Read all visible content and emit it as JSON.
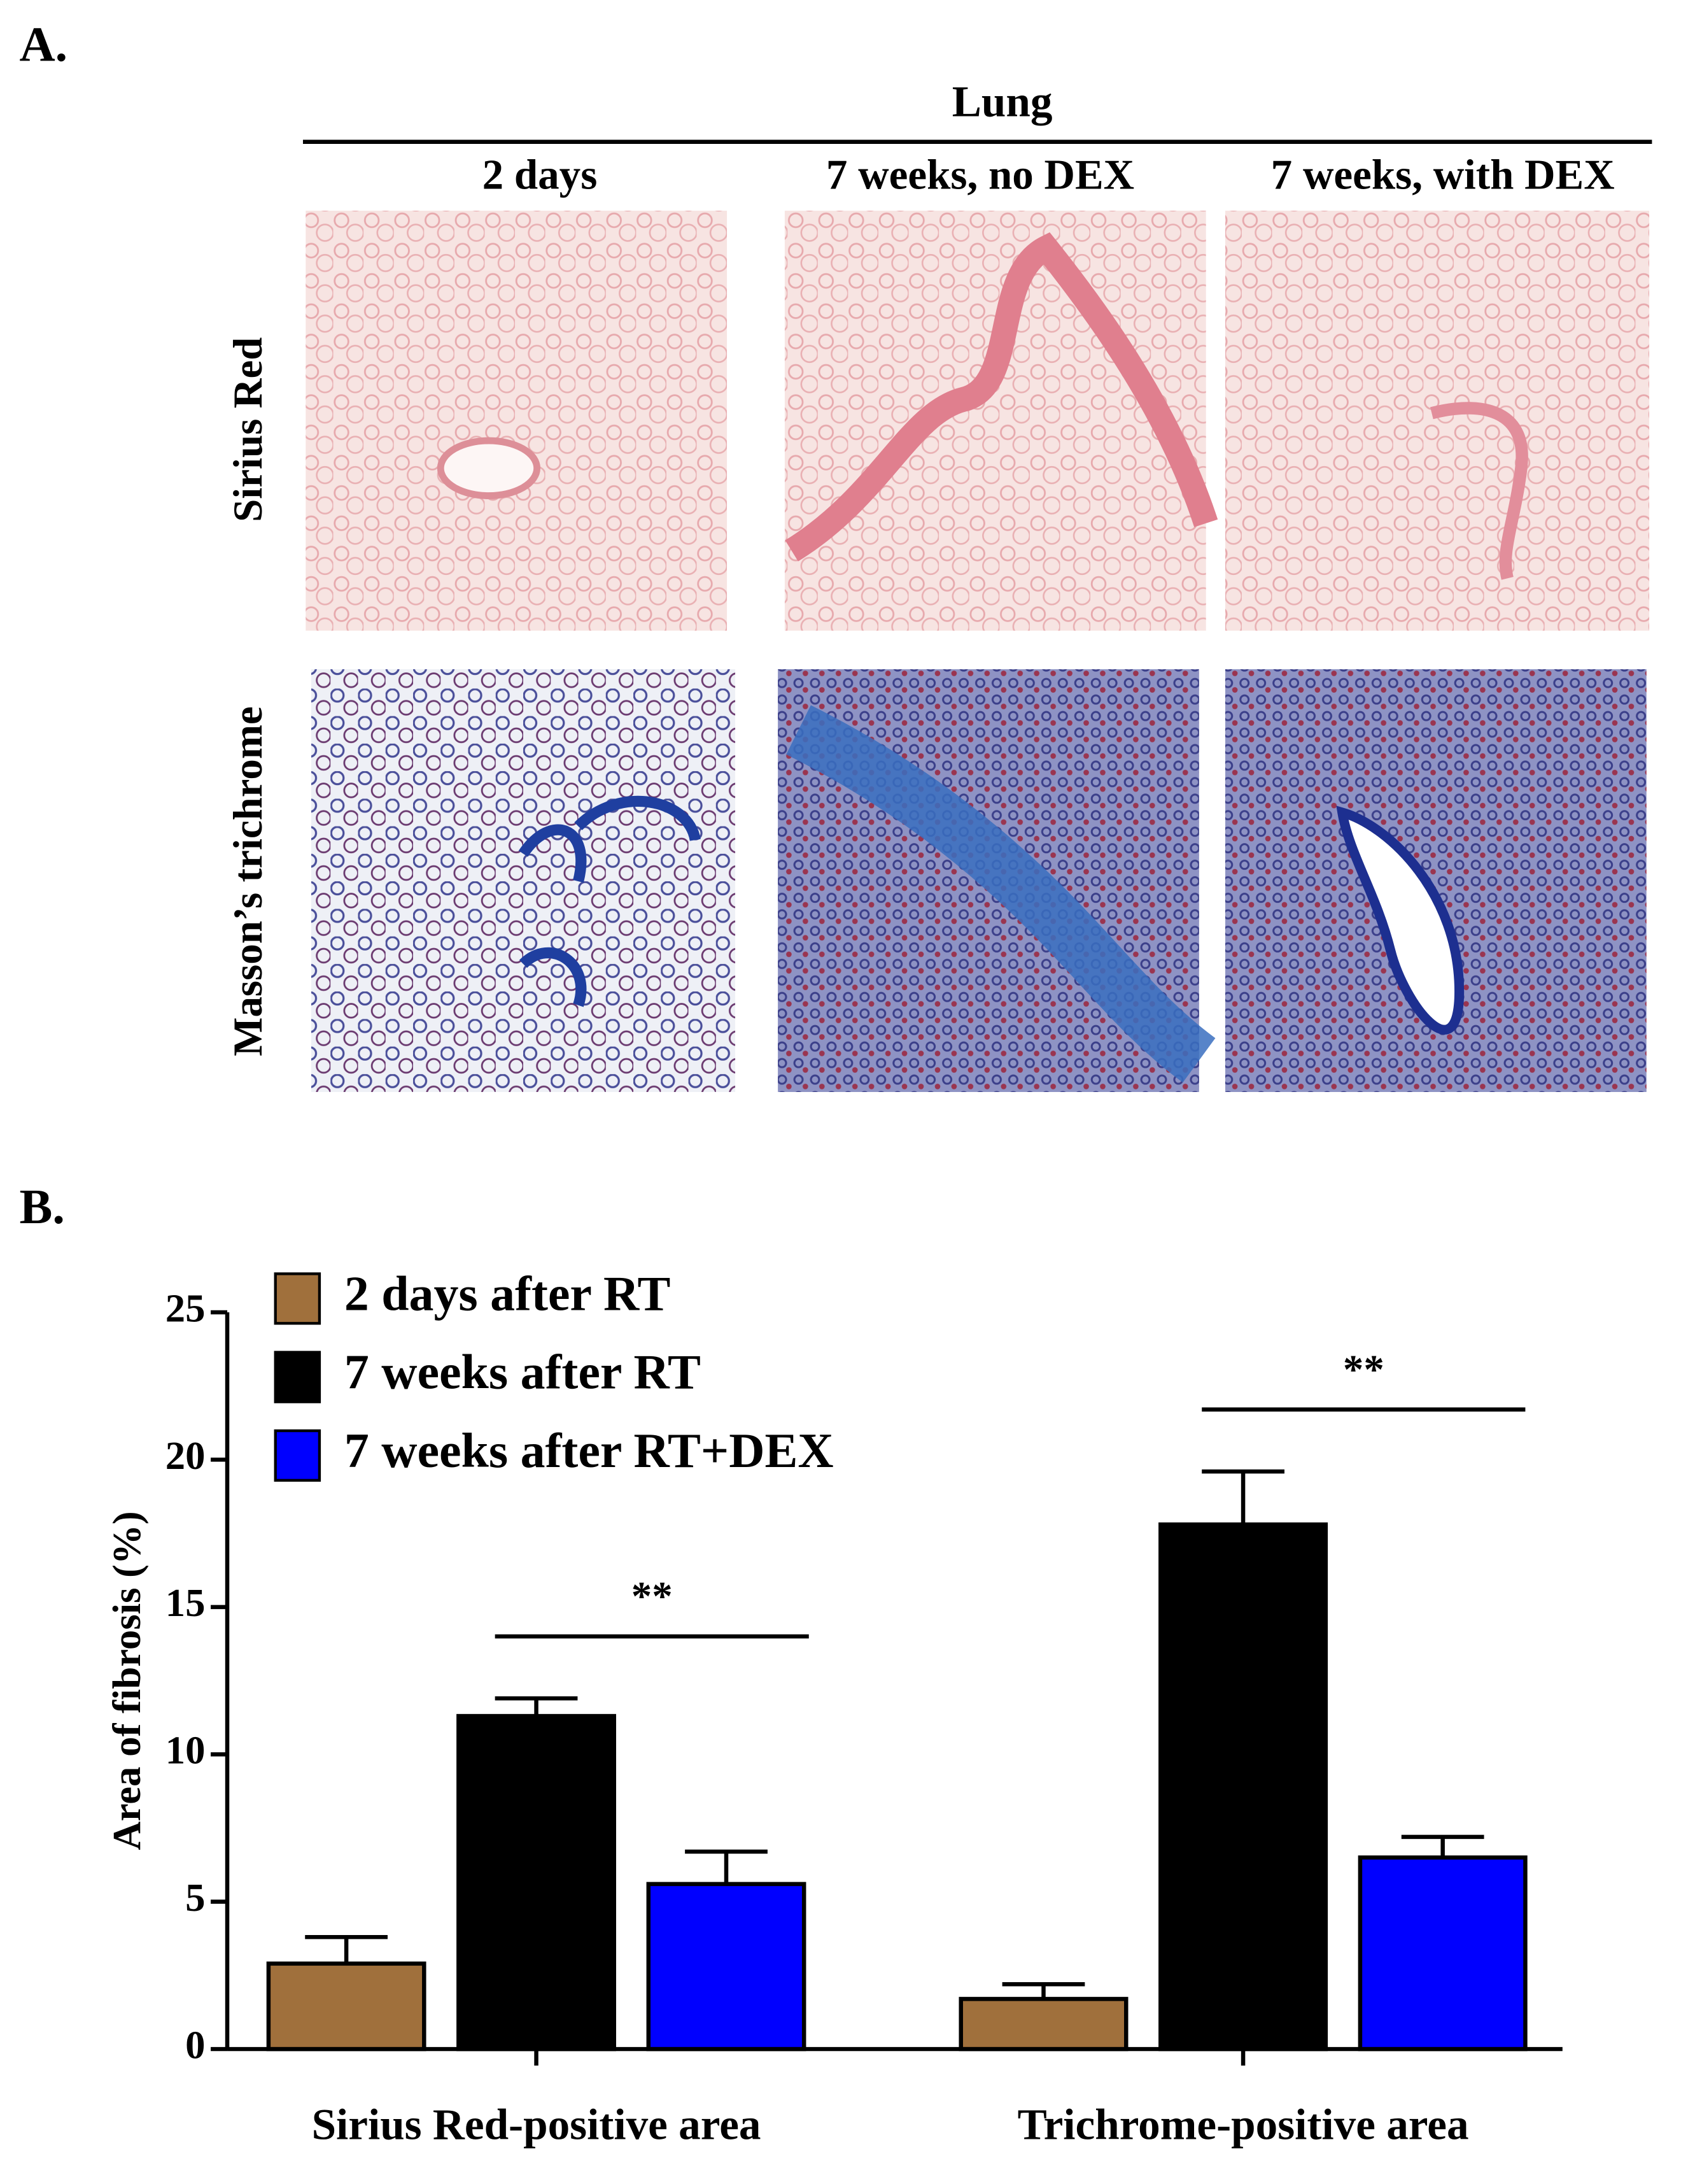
{
  "panel_a": {
    "label": "A.",
    "title": "Lung",
    "columns": [
      "2 days",
      "7 weeks, no DEX",
      "7 weeks, with DEX"
    ],
    "rows": [
      "Sirius Red",
      "Masson’s trichrome"
    ]
  },
  "chart_data": {
    "type": "bar",
    "panel_label": "B.",
    "y_label": "Area of fibrosis (%)",
    "categories": [
      "Sirius Red-positive area",
      "Trichrome-positive area"
    ],
    "series": [
      {
        "name": "2 days after RT",
        "color": "#a0703c",
        "values": [
          2.9,
          1.7
        ],
        "errors": [
          0.9,
          0.5
        ]
      },
      {
        "name": "7 weeks after RT",
        "color": "#000000",
        "values": [
          11.3,
          17.8
        ],
        "errors": [
          0.6,
          1.8
        ]
      },
      {
        "name": "7 weeks after RT+DEX",
        "color": "#0000ff",
        "values": [
          5.6,
          6.5
        ],
        "errors": [
          1.1,
          0.7
        ]
      }
    ],
    "annotations": [
      "**",
      "**"
    ],
    "ylim": [
      0,
      25
    ],
    "yticks": [
      0,
      5,
      10,
      15,
      20,
      25
    ]
  }
}
